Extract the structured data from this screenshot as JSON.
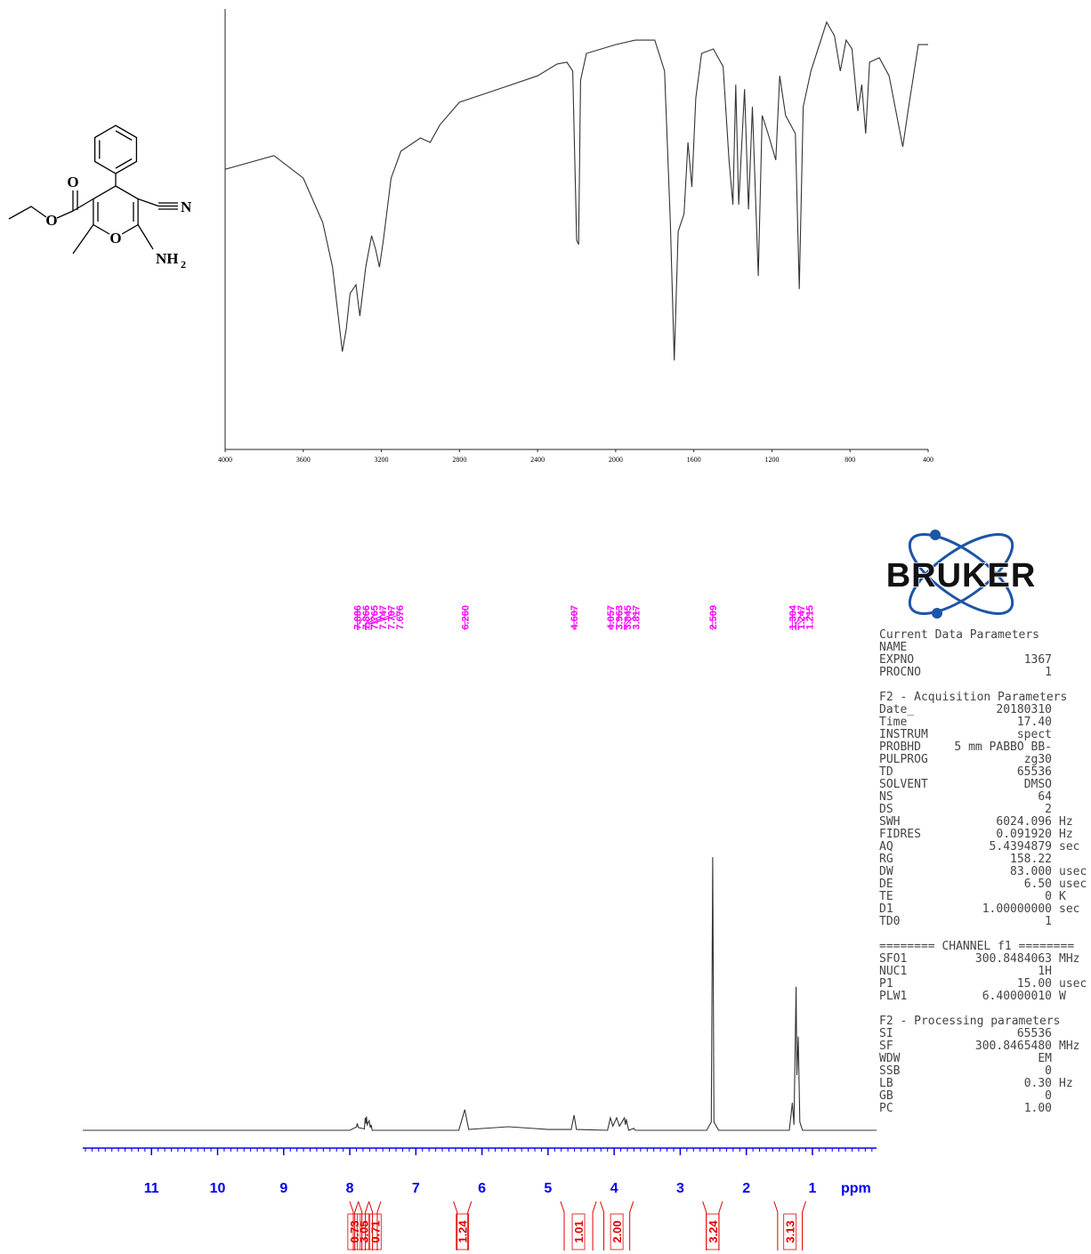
{
  "molecule": {
    "atoms": [
      "O",
      "O",
      "N",
      "O",
      "NH",
      "2"
    ]
  },
  "logo": {
    "text": "BRUKER"
  },
  "parameters": {
    "sections": [
      {
        "heading": "Current Data Parameters",
        "rows": [
          [
            "NAME"
          ],
          [
            "EXPNO",
            "1367"
          ],
          [
            "PROCNO",
            "1"
          ]
        ]
      },
      {
        "heading": "F2 - Acquisition Parameters",
        "rows": [
          [
            "Date_",
            "20180310"
          ],
          [
            "Time",
            "17.40"
          ],
          [
            "INSTRUM",
            "spect"
          ],
          [
            "PROBHD",
            "5 mm PABBO BB-"
          ],
          [
            "PULPROG",
            "zg30"
          ],
          [
            "TD",
            "65536"
          ],
          [
            "SOLVENT",
            "DMSO"
          ],
          [
            "NS",
            "64"
          ],
          [
            "DS",
            "2"
          ],
          [
            "SWH",
            "6024.096",
            "Hz"
          ],
          [
            "FIDRES",
            "0.091920",
            "Hz"
          ],
          [
            "AQ",
            "5.4394879",
            "sec"
          ],
          [
            "RG",
            "158.22"
          ],
          [
            "DW",
            "83.000",
            "usec"
          ],
          [
            "DE",
            "6.50",
            "usec"
          ],
          [
            "TE",
            "0",
            "K"
          ],
          [
            "D1",
            "1.00000000",
            "sec"
          ],
          [
            "TD0",
            "1"
          ]
        ]
      },
      {
        "heading": "======== CHANNEL f1 ========",
        "rows": [
          [
            "SFO1",
            "300.8484063",
            "MHz"
          ],
          [
            "NUC1",
            "1H"
          ],
          [
            "P1",
            "15.00",
            "usec"
          ],
          [
            "PLW1",
            "6.40000010",
            "W"
          ]
        ]
      },
      {
        "heading": "F2 - Processing parameters",
        "rows": [
          [
            "SI",
            "65536"
          ],
          [
            "SF",
            "300.8465480",
            "MHz"
          ],
          [
            "WDW",
            "EM"
          ],
          [
            "SSB",
            "0"
          ],
          [
            "LB",
            "0.30",
            "Hz"
          ],
          [
            "GB",
            "0"
          ],
          [
            "PC",
            "1.00"
          ]
        ]
      }
    ]
  },
  "chart_data": [
    {
      "type": "line",
      "color": "#333333",
      "xlim": [
        4000,
        400
      ],
      "xticks": [
        4000,
        3600,
        3200,
        2800,
        2400,
        2000,
        1600,
        1200,
        800,
        400
      ],
      "ylim": [
        0,
        100
      ],
      "x": [
        4000,
        3750,
        3600,
        3500,
        3450,
        3400,
        3380,
        3360,
        3330,
        3310,
        3280,
        3250,
        3230,
        3210,
        3190,
        3150,
        3100,
        3000,
        2950,
        2900,
        2800,
        2600,
        2400,
        2300,
        2250,
        2220,
        2200,
        2190,
        2180,
        2150,
        2000,
        1900,
        1800,
        1750,
        1720,
        1700,
        1680,
        1650,
        1630,
        1610,
        1590,
        1560,
        1500,
        1450,
        1420,
        1400,
        1385,
        1370,
        1340,
        1320,
        1300,
        1270,
        1250,
        1220,
        1180,
        1160,
        1130,
        1080,
        1060,
        1040,
        1000,
        920,
        880,
        850,
        820,
        790,
        760,
        740,
        720,
        700,
        650,
        600,
        530,
        500,
        450,
        400
      ],
      "values": [
        63.6,
        66.7,
        61.6,
        51.5,
        41.4,
        22.2,
        27.3,
        35.4,
        37.4,
        30.3,
        41.4,
        48.5,
        45.5,
        41.4,
        47.5,
        61.6,
        67.7,
        70.7,
        69.7,
        73.7,
        78.8,
        81.8,
        84.8,
        87.5,
        87.9,
        85.9,
        47.5,
        46.5,
        83.8,
        89.9,
        91.9,
        92.9,
        92.9,
        85.9,
        51.5,
        20.2,
        49.5,
        53.5,
        69.7,
        59.6,
        79.8,
        89.9,
        90.9,
        86.9,
        65.7,
        55.6,
        82.8,
        55.6,
        81.8,
        54.5,
        77.8,
        39.4,
        75.8,
        71.7,
        65.7,
        84.8,
        75.8,
        71.7,
        36.4,
        77.8,
        85.9,
        97.0,
        93.9,
        85.9,
        92.9,
        90.9,
        76.8,
        82.8,
        71.7,
        87.9,
        88.9,
        84.8,
        68.7,
        77.8,
        91.9,
        91.9
      ]
    },
    {
      "type": "line",
      "color": "#333333",
      "axis_color": "#0000ee",
      "peak_color": "#ff00ff",
      "integral_color": "#e00000",
      "xlim": [
        12.04,
        0.03
      ],
      "xticks": [
        11,
        10,
        9,
        8,
        7,
        6,
        5,
        4,
        3,
        2,
        1
      ],
      "minor_tick_interval": 0.1,
      "x_label": "ppm",
      "ylim": [
        0,
        100
      ],
      "x": [
        12.04,
        8.0,
        7.9,
        7.886,
        7.87,
        7.78,
        7.765,
        7.756,
        7.747,
        7.735,
        7.707,
        7.69,
        7.676,
        7.66,
        6.35,
        6.26,
        6.2,
        5.9,
        5.6,
        5.3,
        5.0,
        4.65,
        4.607,
        4.57,
        4.1,
        4.057,
        4.02,
        3.963,
        3.92,
        3.845,
        3.83,
        3.817,
        3.78,
        3.7,
        3.68,
        2.6,
        2.53,
        2.509,
        2.49,
        2.42,
        1.35,
        1.304,
        1.28,
        1.247,
        1.235,
        1.215,
        1.19,
        1.15,
        0.03
      ],
      "values": [
        0,
        0,
        1.2,
        2.5,
        1,
        0.5,
        4.5,
        2.5,
        5,
        2,
        3.5,
        1,
        2,
        0,
        0,
        7.5,
        0.3,
        0.8,
        1.3,
        0.8,
        0.3,
        0.3,
        5.5,
        0.3,
        0,
        4.5,
        1.5,
        4.5,
        1.5,
        4.5,
        2,
        4,
        0,
        0.7,
        0,
        0,
        3,
        99,
        3,
        0,
        0,
        10,
        2,
        52,
        20,
        34,
        3,
        0,
        0
      ],
      "peaks": [
        7.886,
        7.866,
        7.765,
        7.747,
        7.707,
        7.676,
        {
          "value": 6.26,
          "label": "6.260"
        },
        4.607,
        4.057,
        3.963,
        3.845,
        3.817,
        2.509,
        1.304,
        1.247,
        1.215
      ],
      "integrals": {
        "ranges": [
          [
            8.0,
            7.87
          ],
          [
            7.87,
            7.71
          ],
          [
            7.71,
            7.53
          ],
          [
            6.43,
            6.16
          ],
          [
            4.81,
            4.27
          ],
          [
            4.21,
            3.71
          ],
          [
            2.66,
            2.36
          ],
          [
            1.58,
            1.1
          ]
        ],
        "values": [
          0.73,
          3.05,
          0.71,
          1.24,
          1.01,
          2,
          3.24,
          3.13
        ],
        "value_labels": [
          "0.73",
          "3.05",
          "0.71",
          "1.24",
          "1.01",
          "2.00",
          "3.24",
          "3.13"
        ]
      }
    }
  ]
}
